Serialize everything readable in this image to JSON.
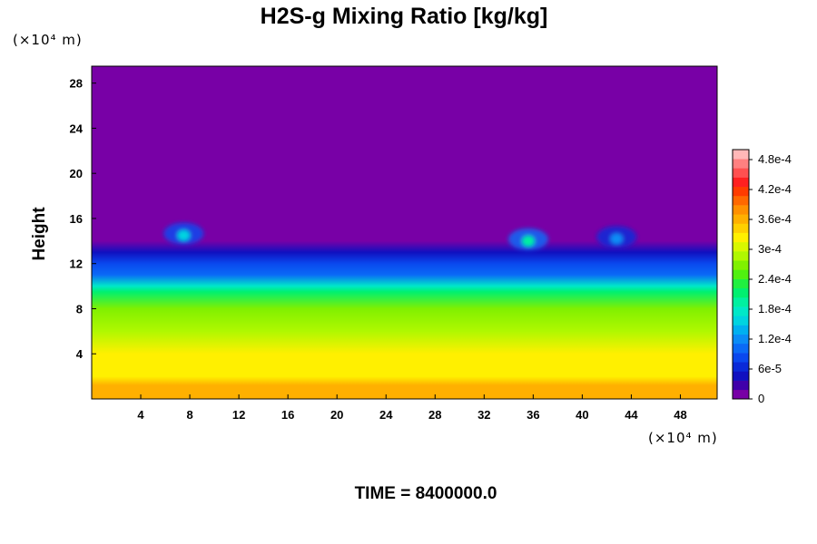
{
  "chart_data": {
    "type": "heatmap",
    "title": "H2S-g Mixing Ratio [kg/kg]",
    "ylabel": "Height",
    "x_unit": "(×10⁴ m)",
    "y_unit": "(×10⁴ m)",
    "x_ticks": [
      4,
      8,
      12,
      16,
      20,
      24,
      28,
      32,
      36,
      40,
      44,
      48
    ],
    "y_ticks": [
      4,
      8,
      12,
      16,
      20,
      24,
      28
    ],
    "xlim": [
      0,
      51
    ],
    "ylim": [
      0,
      29.5
    ],
    "time_label": "TIME = 8400000.0",
    "colorbar": {
      "min": 0,
      "max": 0.0005,
      "tick_values": [
        0,
        6e-05,
        0.00012,
        0.00018,
        0.00024,
        0.0003,
        0.00036,
        0.00042,
        0.00048
      ],
      "tick_labels": [
        "0",
        "6e-5",
        "1.2e-4",
        "1.8e-4",
        "2.4e-4",
        "3e-4",
        "3.6e-4",
        "4.2e-4",
        "4.8e-4"
      ],
      "colors": [
        "#7800a6",
        "#4000aa",
        "#1010c0",
        "#0a2ad8",
        "#0a48ee",
        "#0a6af6",
        "#0a8cf6",
        "#00b0f0",
        "#00d4e0",
        "#00e8c8",
        "#00f0a0",
        "#00f070",
        "#20f040",
        "#50f010",
        "#80f000",
        "#b0f800",
        "#d8f800",
        "#fff000",
        "#ffd000",
        "#ffb000",
        "#ff9000",
        "#ff6800",
        "#ff3c00",
        "#ff2020",
        "#ff5050",
        "#ff8080",
        "#ffb8b8"
      ]
    },
    "vertical_profile": [
      {
        "height": 0.0,
        "value": 0.00037
      },
      {
        "height": 1.2,
        "value": 0.00036
      },
      {
        "height": 2.0,
        "value": 0.00033
      },
      {
        "height": 4.0,
        "value": 0.00032
      },
      {
        "height": 6.0,
        "value": 0.00029
      },
      {
        "height": 8.0,
        "value": 0.00027
      },
      {
        "height": 9.5,
        "value": 0.00022
      },
      {
        "height": 10.0,
        "value": 0.00018
      },
      {
        "height": 11.0,
        "value": 0.00011
      },
      {
        "height": 12.0,
        "value": 8e-05
      },
      {
        "height": 13.0,
        "value": 5e-05
      },
      {
        "height": 14.0,
        "value": 0.0
      }
    ],
    "plumes": [
      {
        "x": 7.5,
        "height": 14.5,
        "peak": 0.00016
      },
      {
        "x": 35.6,
        "height": 14.0,
        "peak": 0.00019
      },
      {
        "x": 42.8,
        "height": 14.2,
        "peak": 0.00012
      }
    ]
  }
}
